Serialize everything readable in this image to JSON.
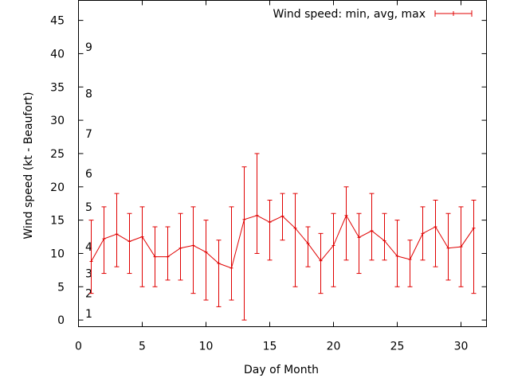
{
  "chart_data": {
    "type": "line",
    "xlabel": "Day of Month",
    "ylabel": "Wind speed (kt - Beaufort)",
    "xlim": [
      0,
      32
    ],
    "ylim": [
      -1,
      48
    ],
    "x_ticks": [
      0,
      5,
      10,
      15,
      20,
      25,
      30
    ],
    "y_ticks": [
      0,
      5,
      10,
      15,
      20,
      25,
      30,
      35,
      40,
      45
    ],
    "beaufort_labels": [
      {
        "label": "1",
        "y": 1
      },
      {
        "label": "2",
        "y": 4
      },
      {
        "label": "3",
        "y": 7
      },
      {
        "label": "4",
        "y": 11
      },
      {
        "label": "5",
        "y": 17
      },
      {
        "label": "6",
        "y": 22
      },
      {
        "label": "7",
        "y": 28
      },
      {
        "label": "8",
        "y": 34
      },
      {
        "label": "9",
        "y": 41
      }
    ],
    "legend_placement": "top-right",
    "grid": false,
    "series": [
      {
        "name": "Wind speed: min, avg, max",
        "color": "#e00000",
        "x": [
          1,
          2,
          3,
          4,
          5,
          6,
          7,
          8,
          9,
          10,
          11,
          12,
          13,
          14,
          15,
          16,
          17,
          18,
          19,
          20,
          21,
          22,
          23,
          24,
          25,
          26,
          27,
          28,
          29,
          30,
          31
        ],
        "avg": [
          8.8,
          12.2,
          12.9,
          11.8,
          12.5,
          9.5,
          9.5,
          10.8,
          11.2,
          10.2,
          8.5,
          7.8,
          15.1,
          15.7,
          14.7,
          15.6,
          13.8,
          11.5,
          8.9,
          11.2,
          15.7,
          12.4,
          13.4,
          11.9,
          9.6,
          9.1,
          13.0,
          14.0,
          10.8,
          11.0,
          13.8
        ],
        "min": [
          4,
          7,
          8,
          7,
          5,
          5,
          6,
          6,
          4,
          3,
          2,
          3,
          0,
          10,
          9,
          12,
          5,
          8,
          4,
          5,
          9,
          7,
          9,
          9,
          5,
          5,
          9,
          8,
          6,
          5,
          4
        ],
        "max": [
          15,
          17,
          19,
          16,
          17,
          14,
          14,
          16,
          17,
          15,
          12,
          17,
          23,
          25,
          18,
          19,
          19,
          14,
          13,
          16,
          20,
          16,
          19,
          16,
          15,
          12,
          17,
          18,
          16,
          17,
          18
        ]
      }
    ]
  }
}
